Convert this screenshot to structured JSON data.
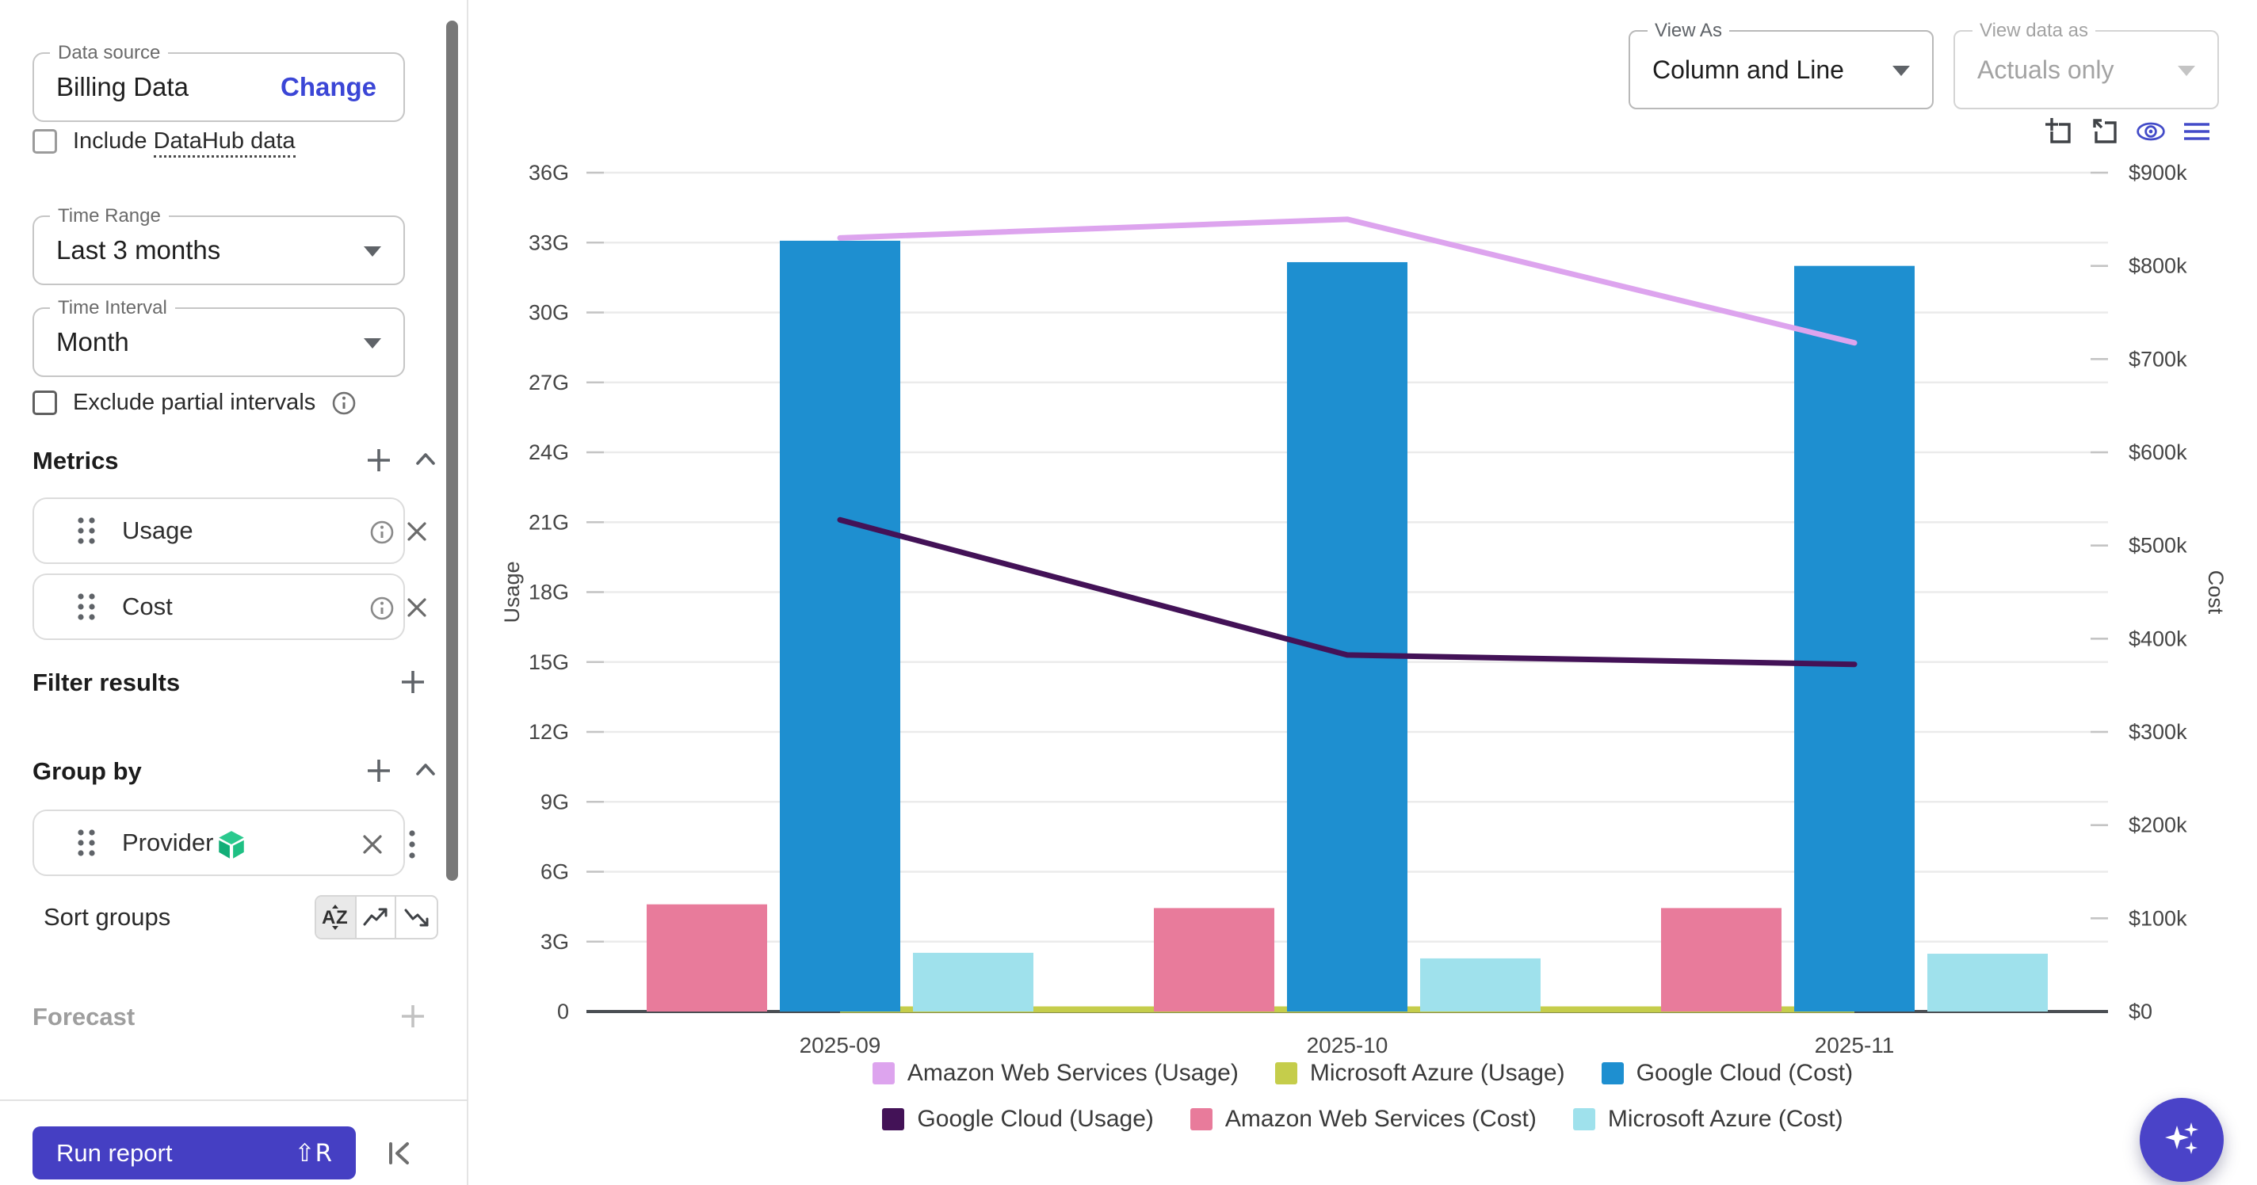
{
  "sidebar": {
    "data_source": {
      "label": "Data source",
      "value": "Billing Data",
      "action": "Change"
    },
    "include_datahub": {
      "label_prefix": "Include",
      "label_link": "DataHub data",
      "checked": false
    },
    "time_range": {
      "label": "Time Range",
      "value": "Last 3 months"
    },
    "time_interval": {
      "label": "Time Interval",
      "value": "Month"
    },
    "exclude_partial": {
      "label": "Exclude partial intervals",
      "checked": false
    },
    "metrics": {
      "title": "Metrics",
      "items": [
        {
          "label": "Usage"
        },
        {
          "label": "Cost"
        }
      ]
    },
    "filter_results": {
      "title": "Filter results"
    },
    "group_by": {
      "title": "Group by",
      "items": [
        {
          "label": "Provider"
        }
      ]
    },
    "sort_groups": {
      "label": "Sort groups",
      "selected": "alphabetical"
    },
    "forecast": {
      "title": "Forecast",
      "disabled": true
    },
    "run_report": {
      "label": "Run report",
      "shortcut": "⇧R"
    }
  },
  "topbar": {
    "view_as": {
      "label": "View As",
      "value": "Column and Line",
      "disabled": false
    },
    "view_data_as": {
      "label": "View data as",
      "value": "Actuals only",
      "disabled": true
    }
  },
  "icons": {
    "toolbar": [
      "crop-add-icon",
      "crop-reset-icon",
      "eye-icon",
      "menu-icon"
    ],
    "sidebar": [
      "drag-handle-icon",
      "info-icon",
      "close-icon",
      "cube-icon",
      "kebab-icon",
      "plus-icon",
      "chevron-up-icon",
      "chevron-down-icon",
      "sort-az-icon",
      "trend-up-icon",
      "trend-down-icon",
      "collapse-panel-icon",
      "shift-key-icon"
    ],
    "floating": [
      "sparkle-icon"
    ]
  },
  "colors": {
    "accent_indigo": "#453fc3",
    "link_blue": "#3b46d6",
    "icon_blue": "#434bc8",
    "axis_line": "#4a4e53",
    "gridline": "#ebebeb",
    "tick_text": "#454545"
  },
  "chart_data": {
    "type": "column+line",
    "categories": [
      "2025-09",
      "2025-10",
      "2025-11"
    ],
    "axes": {
      "usage": {
        "title": "Usage",
        "min": 0,
        "max": 36,
        "unit": "G",
        "ticks": [
          "0",
          "3G",
          "6G",
          "9G",
          "12G",
          "15G",
          "18G",
          "21G",
          "24G",
          "27G",
          "30G",
          "33G",
          "36G"
        ]
      },
      "cost": {
        "title": "Cost",
        "min": 0,
        "max": 900000,
        "unit": "$",
        "ticks": [
          "$0",
          "$100k",
          "$200k",
          "$300k",
          "$400k",
          "$500k",
          "$600k",
          "$700k",
          "$800k",
          "$900k"
        ]
      }
    },
    "series": [
      {
        "name": "Amazon Web Services (Usage)",
        "kind": "line",
        "axis": "usage",
        "color": "#dda4ee",
        "values": [
          33.2,
          34.0,
          28.7
        ]
      },
      {
        "name": "Microsoft Azure (Usage)",
        "kind": "line",
        "axis": "usage",
        "color": "#c5cd4b",
        "values": [
          0.05,
          0.05,
          0.05
        ]
      },
      {
        "name": "Google Cloud (Usage)",
        "kind": "line",
        "axis": "usage",
        "color": "#431257",
        "values": [
          21.1,
          15.3,
          14.9
        ]
      },
      {
        "name": "Amazon Web Services (Cost)",
        "kind": "column",
        "axis": "cost",
        "color": "#e87b9b",
        "values": [
          115000,
          111000,
          111000
        ]
      },
      {
        "name": "Google Cloud (Cost)",
        "kind": "column",
        "axis": "cost",
        "color": "#1e8fd0",
        "values": [
          827000,
          804000,
          800000
        ]
      },
      {
        "name": "Microsoft Azure (Cost)",
        "kind": "column",
        "axis": "cost",
        "color": "#9fe1ec",
        "values": [
          63000,
          57000,
          62000
        ]
      }
    ],
    "column_order": [
      "Amazon Web Services (Cost)",
      "Google Cloud (Cost)",
      "Microsoft Azure (Cost)"
    ],
    "legend_rows": [
      [
        "Amazon Web Services (Usage)",
        "Microsoft Azure (Usage)",
        "Google Cloud (Cost)"
      ],
      [
        "Google Cloud (Usage)",
        "Amazon Web Services (Cost)",
        "Microsoft Azure (Cost)"
      ]
    ],
    "grid": "horizontal",
    "legend_position": "bottom"
  }
}
